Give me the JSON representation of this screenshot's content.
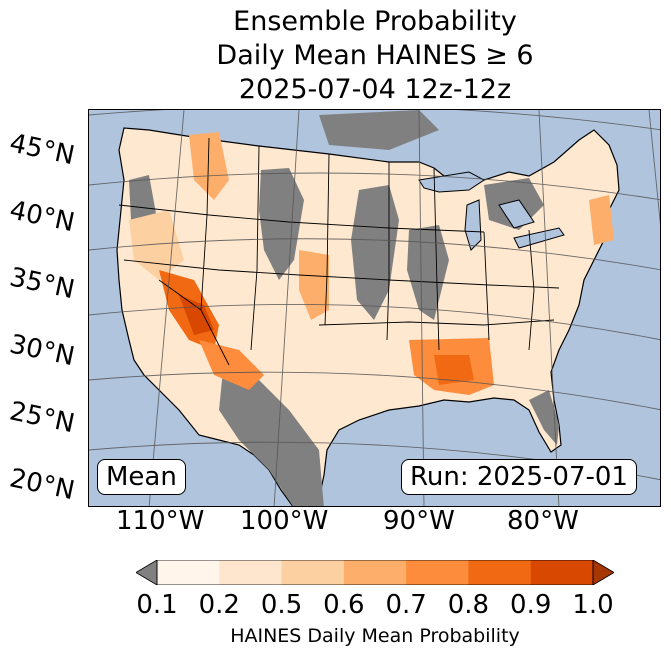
{
  "title": [
    "Ensemble Probability",
    "Daily Mean HAINES ≥ 6",
    "2025-07-04 12z-12z"
  ],
  "map": {
    "lat_labels": [
      "45°N",
      "40°N",
      "35°N",
      "30°N",
      "25°N",
      "20°N"
    ],
    "lon_labels": [
      "110°W",
      "100°W",
      "90°W",
      "80°W"
    ],
    "stat_box": "Mean",
    "run_box": "Run: 2025-07-01",
    "colors": {
      "ocean": "#b0c4de",
      "below_min": "#808080"
    }
  },
  "colorbar": {
    "ticks": [
      "0.1",
      "0.2",
      "0.5",
      "0.6",
      "0.7",
      "0.8",
      "0.9",
      "1.0"
    ],
    "colors": [
      "#fff5eb",
      "#fee6ce",
      "#fdd0a2",
      "#fdae6b",
      "#fd8d3c",
      "#f16913",
      "#d94801"
    ],
    "under_color": "#808080",
    "over_color": "#a63603",
    "label": "HAINES Daily Mean Probability"
  }
}
